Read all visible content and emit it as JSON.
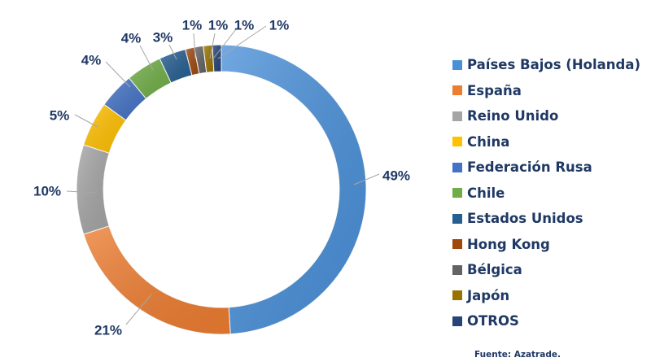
{
  "chart_data": {
    "type": "pie",
    "variant": "donut",
    "title": "",
    "categories": [
      "Países Bajos (Holanda)",
      "España",
      "Reino Unido",
      "China",
      "Federación Rusa",
      "Chile",
      "Estados Unidos",
      "Hong Kong",
      "Bélgica",
      "Japón",
      "OTROS"
    ],
    "values": [
      49,
      21,
      10,
      5,
      4,
      4,
      3,
      1,
      1,
      1,
      1
    ],
    "labels": [
      "49%",
      "21%",
      "10%",
      "5%",
      "4%",
      "4%",
      "3%",
      "1%",
      "1%",
      "1%",
      "1%"
    ],
    "colors": [
      "#4a90d9",
      "#ed7d31",
      "#a5a5a5",
      "#ffc000",
      "#4472c4",
      "#70ad47",
      "#255e91",
      "#9e480e",
      "#636363",
      "#997300",
      "#264478"
    ],
    "legend_position": "right"
  },
  "source_note": "Fuente: Azatrade."
}
